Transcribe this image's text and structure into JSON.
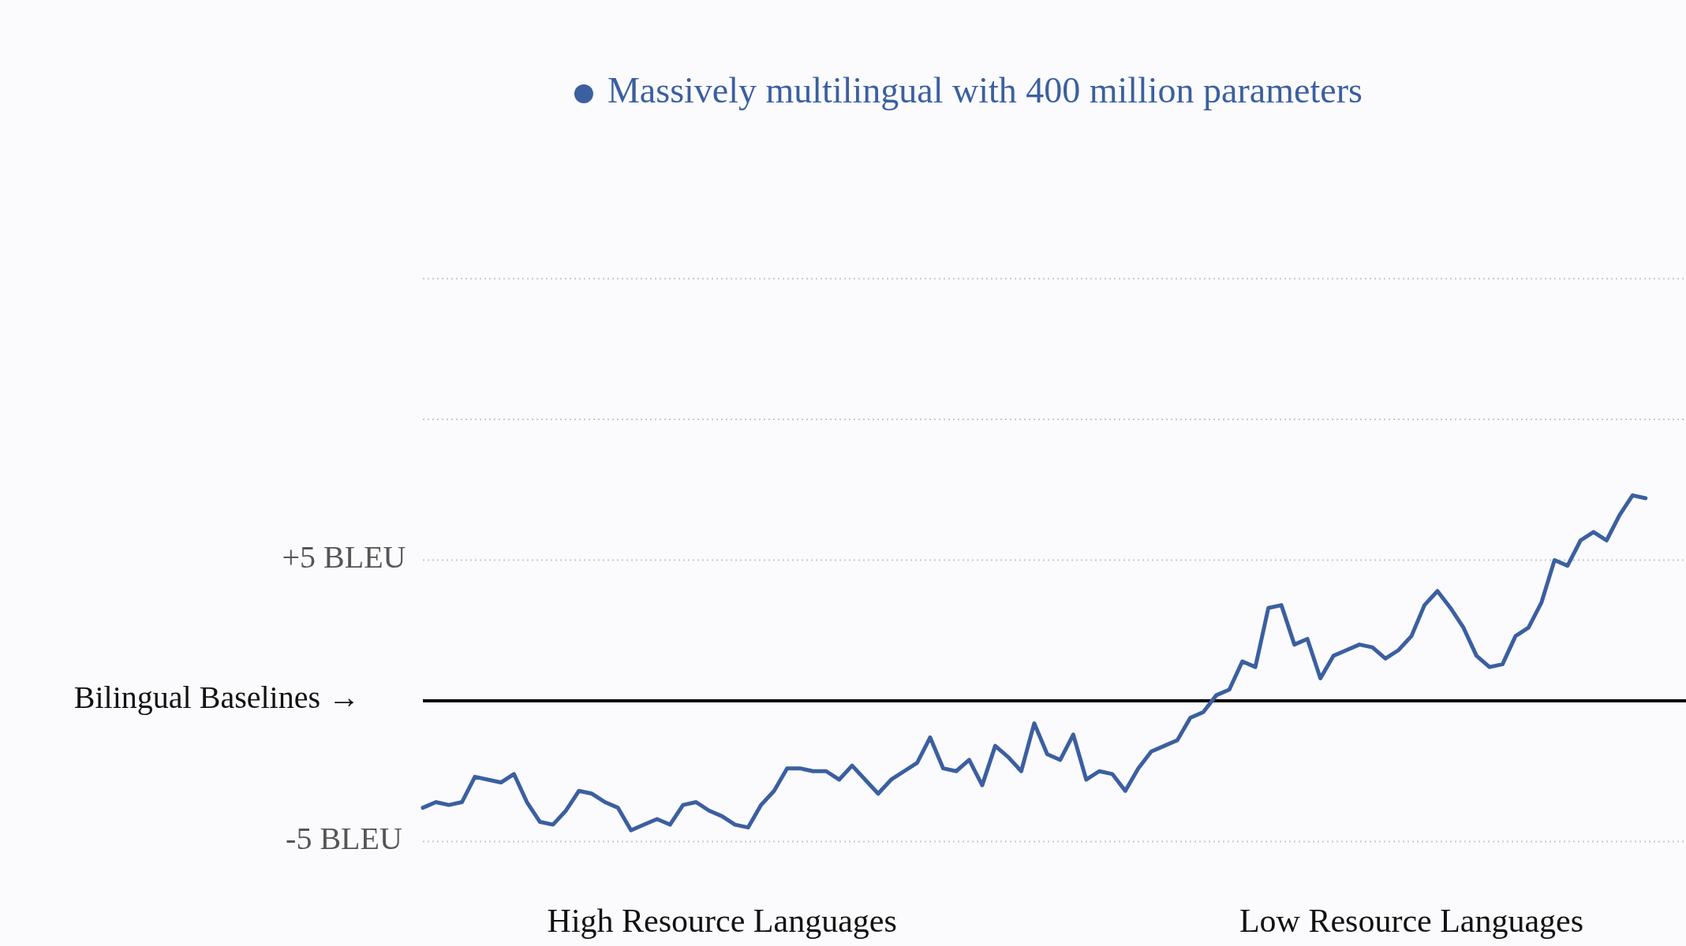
{
  "chart_data": {
    "type": "line",
    "categories": [
      null,
      null,
      null,
      null,
      null,
      null,
      null,
      null,
      null,
      null,
      null,
      null,
      null,
      null,
      null,
      null,
      null,
      null,
      null,
      null,
      null,
      null,
      null,
      "High Resource Languages",
      null,
      null,
      null,
      null,
      null,
      null,
      null,
      null,
      null,
      null,
      null,
      null,
      null,
      null,
      null,
      null,
      null,
      null,
      null,
      null,
      null,
      null,
      null,
      null,
      null,
      null,
      null,
      null,
      null,
      null,
      null,
      null,
      null,
      null,
      null,
      null,
      null,
      null,
      null,
      null,
      null,
      null,
      null,
      null,
      null,
      null,
      null,
      null,
      null,
      null,
      null,
      null,
      "Low Resource Languages",
      null,
      null,
      null,
      null,
      null,
      null,
      null,
      null,
      null,
      null,
      null,
      null,
      null,
      null,
      null,
      null,
      null,
      null
    ],
    "series": [
      {
        "name": "Massively multilingual with 400 million parameters",
        "color": "#3b5fa0",
        "values": [
          -3.8,
          -3.6,
          -3.7,
          -3.6,
          -2.7,
          -2.8,
          -2.9,
          -2.6,
          -3.6,
          -4.3,
          -4.4,
          -3.9,
          -3.2,
          -3.3,
          -3.6,
          -3.8,
          -4.6,
          -4.4,
          -4.2,
          -4.4,
          -3.7,
          -3.6,
          -3.9,
          -4.1,
          -4.4,
          -4.5,
          -3.7,
          -3.2,
          -2.4,
          -2.4,
          -2.5,
          -2.5,
          -2.8,
          -2.3,
          -2.8,
          -3.3,
          -2.8,
          -2.5,
          -2.2,
          -1.3,
          -2.4,
          -2.5,
          -2.1,
          -3.0,
          -1.6,
          -2.0,
          -2.5,
          -0.8,
          -1.9,
          -2.1,
          -1.2,
          -2.8,
          -2.5,
          -2.6,
          -3.2,
          -2.4,
          -1.8,
          -1.6,
          -1.4,
          -0.6,
          -0.4,
          0.2,
          0.4,
          1.4,
          1.2,
          3.3,
          3.4,
          2.0,
          2.2,
          0.8,
          1.6,
          1.8,
          2.0,
          1.9,
          1.5,
          1.8,
          2.3,
          3.4,
          3.9,
          3.3,
          2.6,
          1.6,
          1.2,
          1.3,
          2.3,
          2.6,
          3.5,
          5.0,
          4.8,
          5.7,
          6.0,
          5.7,
          6.6,
          7.3,
          7.2
        ]
      }
    ],
    "ylim": [
      -5,
      15
    ],
    "yticks": [
      {
        "value": -5,
        "label": "-5 BLEU"
      },
      {
        "value": 5,
        "label": "+5 BLEU"
      },
      {
        "value": 10,
        "label": null
      },
      {
        "value": 15,
        "label": null
      }
    ],
    "ref_lines": [
      {
        "axis": "y",
        "value": 0,
        "label": "Bilingual Baselines →",
        "color": "#000000"
      }
    ],
    "grid": "y",
    "legend": "top",
    "marker": "none",
    "line_style": "solid"
  }
}
